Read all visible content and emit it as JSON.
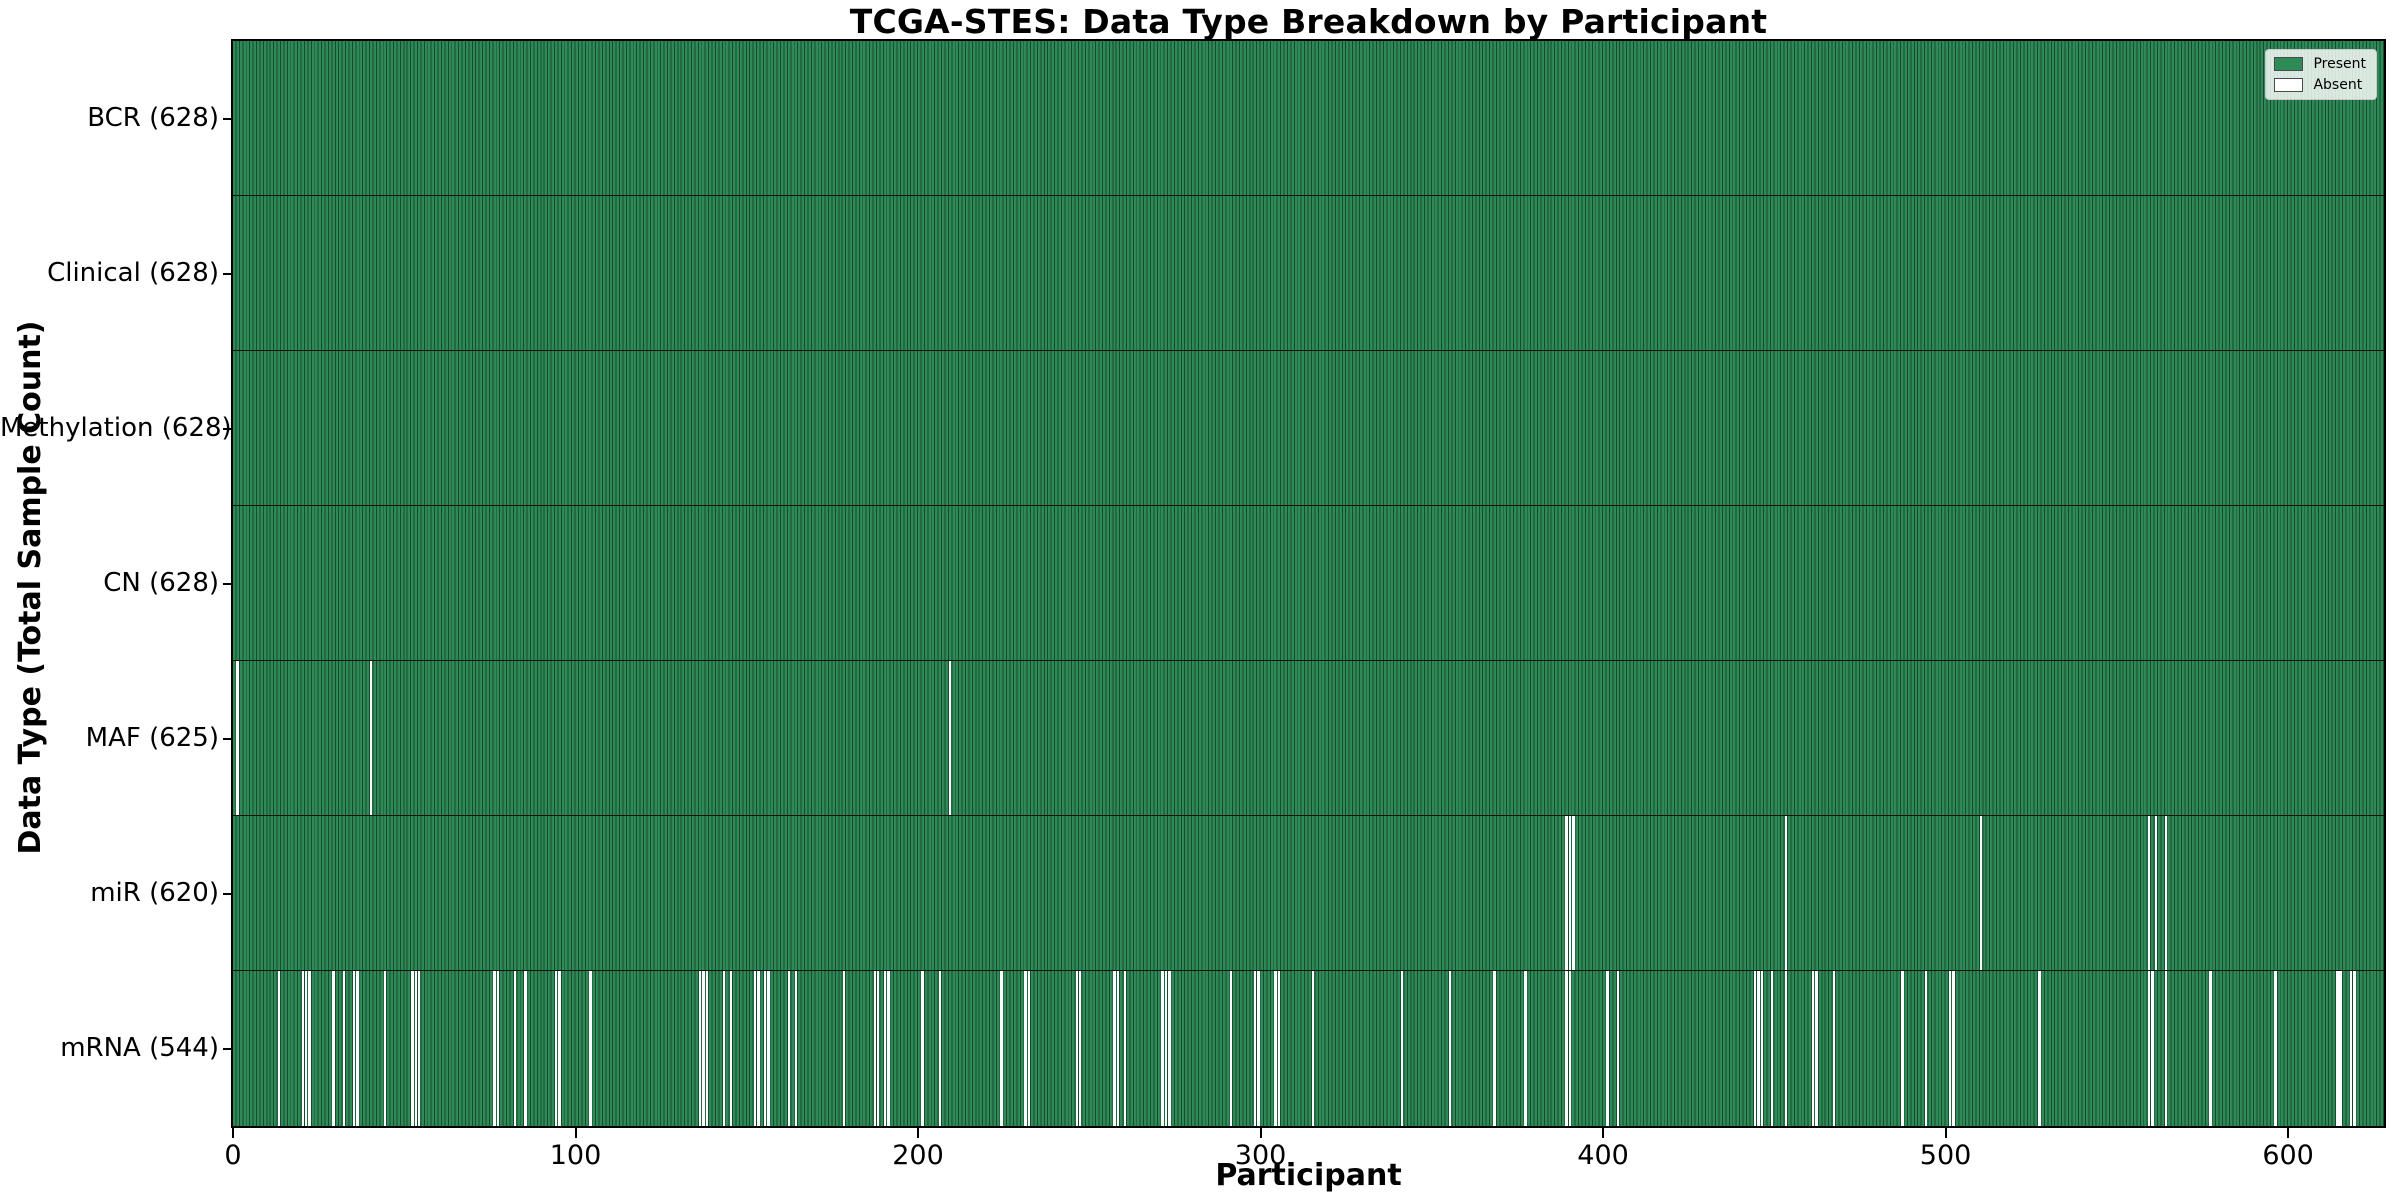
{
  "title": "TCGA-STES: Data Type Breakdown by Participant",
  "colors": {
    "present": "#2e8b57",
    "absent": "#ffffff",
    "bar_edge": "#17492d",
    "row_separator": "#111111",
    "spine": "#000000"
  },
  "legend": {
    "present_label": "Present",
    "absent_label": "Absent"
  },
  "chart_data": {
    "type": "heatmap",
    "title": "TCGA-STES: Data Type Breakdown by Participant",
    "xlabel": "Participant",
    "ylabel": "Data Type (Total Sample Count)",
    "xlim": [
      0,
      628
    ],
    "n_participants": 628,
    "grid": false,
    "legend_position": "upper right",
    "x_ticks": [
      0,
      100,
      200,
      300,
      400,
      500,
      600
    ],
    "legend": [
      {
        "label": "Present",
        "color": "#2e8b57"
      },
      {
        "label": "Absent",
        "color": "#ffffff"
      }
    ],
    "rows": [
      {
        "data_type": "BCR",
        "label": "BCR (628)",
        "present_count": 628,
        "total": 628,
        "absent_participants": []
      },
      {
        "data_type": "Clinical",
        "label": "Clinical (628)",
        "present_count": 628,
        "total": 628,
        "absent_participants": []
      },
      {
        "data_type": "Methylation",
        "label": "Methylation (628)",
        "present_count": 628,
        "total": 628,
        "absent_participants": []
      },
      {
        "data_type": "CN",
        "label": "CN (628)",
        "present_count": 628,
        "total": 628,
        "absent_participants": []
      },
      {
        "data_type": "MAF",
        "label": "MAF (625)",
        "present_count": 625,
        "total": 628,
        "absent_participants": [
          1,
          40,
          209
        ]
      },
      {
        "data_type": "miR",
        "label": "miR (620)",
        "present_count": 620,
        "total": 628,
        "absent_participants": [
          389,
          390,
          391,
          453,
          510,
          559,
          561,
          564
        ]
      },
      {
        "data_type": "mRNA",
        "label": "mRNA (544)",
        "present_count": 544,
        "total": 628,
        "absent_participants": [
          13,
          20,
          21,
          22,
          29,
          32,
          35,
          36,
          44,
          52,
          53,
          54,
          76,
          77,
          82,
          85,
          94,
          95,
          104,
          136,
          137,
          138,
          143,
          145,
          152,
          153,
          155,
          156,
          162,
          164,
          178,
          187,
          188,
          190,
          191,
          201,
          206,
          224,
          231,
          232,
          246,
          247,
          257,
          258,
          260,
          271,
          272,
          273,
          291,
          298,
          299,
          304,
          305,
          315,
          341,
          355,
          368,
          377,
          389,
          390,
          401,
          404,
          444,
          445,
          446,
          449,
          453,
          461,
          462,
          467,
          487,
          494,
          501,
          502,
          527,
          559,
          560,
          564,
          577,
          596,
          614,
          615,
          618,
          619
        ]
      }
    ]
  }
}
